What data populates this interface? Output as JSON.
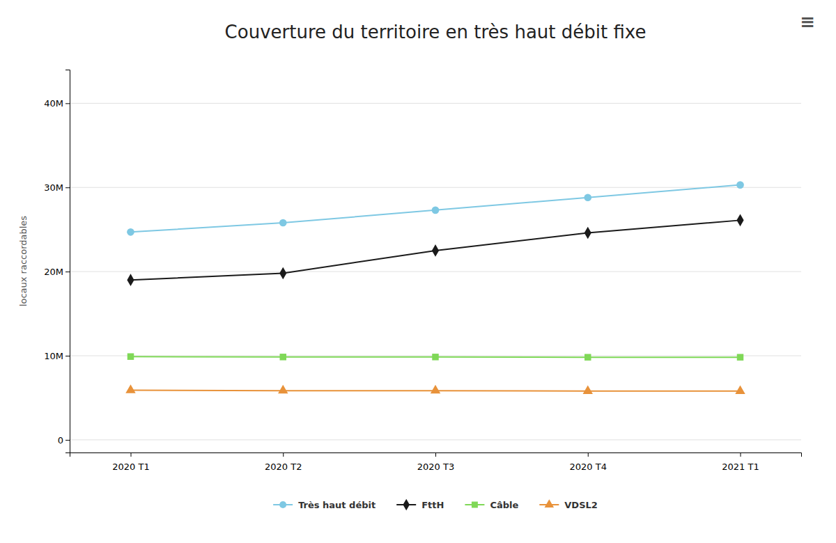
{
  "chart_data": {
    "type": "line",
    "title": "Couverture du territoire en très haut débit fixe",
    "y_label": "locaux raccordables",
    "annotations": [
      "≡"
    ],
    "categories": [
      "2020 T1",
      "2020 T2",
      "2020 T3",
      "2020 T4",
      "2021 T1"
    ],
    "series": [
      {
        "name": "Très haut débit",
        "color": "#7EC8E3",
        "marker": "circle",
        "values": [
          24.7,
          25.8,
          27.3,
          28.8,
          30.3
        ]
      },
      {
        "name": "FttH",
        "color": "#1a1a1a",
        "marker": "diamond",
        "values": [
          19.0,
          19.8,
          22.5,
          24.6,
          26.1
        ]
      },
      {
        "name": "Câble",
        "color": "#7FD857",
        "marker": "square",
        "values": [
          9.9,
          9.85,
          9.85,
          9.82,
          9.82
        ]
      },
      {
        "name": "VDSL2",
        "color": "#E8923A",
        "marker": "triangle",
        "values": [
          5.9,
          5.85,
          5.85,
          5.8,
          5.8
        ]
      }
    ],
    "ylim": [
      -1.5,
      44
    ],
    "yticks": [
      0,
      {
        "value": 10,
        "label": "10M"
      },
      {
        "value": 20,
        "label": "20M"
      },
      {
        "value": 30,
        "label": "30M"
      },
      {
        "value": 40,
        "label": "40M"
      }
    ],
    "grid": true,
    "legend": "bottom"
  }
}
